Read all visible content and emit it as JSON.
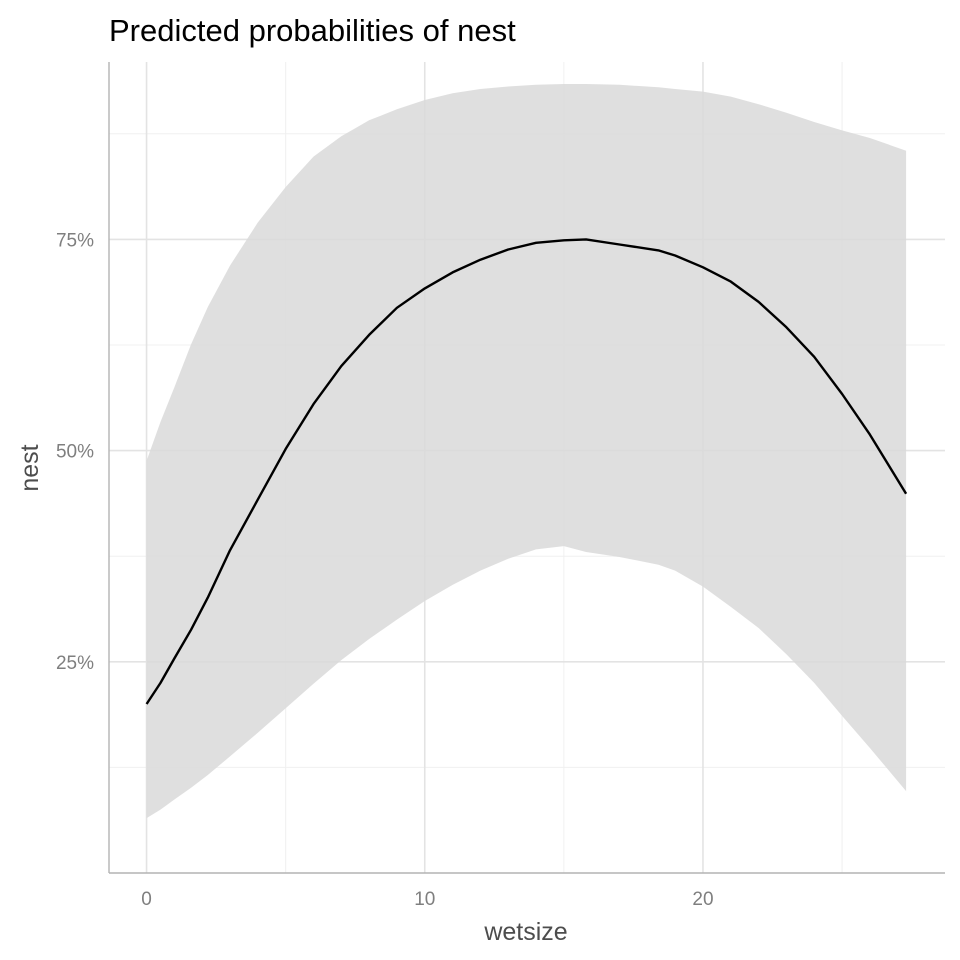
{
  "chart_data": {
    "type": "line",
    "title": "Predicted probabilities of nest",
    "xlabel": "wetsize",
    "ylabel": "nest",
    "xlim": [
      -1.35,
      28.7
    ],
    "ylim": [
      0.0,
      0.96
    ],
    "x_ticks": [
      0,
      10,
      20
    ],
    "x_tick_labels": [
      "0",
      "10",
      "20"
    ],
    "y_ticks": [
      0.25,
      0.5,
      0.75
    ],
    "y_tick_labels": [
      "25%",
      "50%",
      "75%"
    ],
    "x_minor_ticks": [
      5,
      15,
      25
    ],
    "y_minor_ticks": [
      0.125,
      0.375,
      0.625,
      0.875
    ],
    "grid": true,
    "legend": "none",
    "colors": {
      "line": "#000000",
      "ribbon": "#d9d9d9",
      "grid_major": "#e3e3e3",
      "grid_minor": "#f0f0f0",
      "axis": "#b3b3b3"
    },
    "series": [
      {
        "x": [
          0,
          0.5,
          1,
          1.6,
          2.2,
          3,
          4,
          5,
          6,
          7,
          8,
          9,
          10,
          11,
          12,
          13,
          14,
          15,
          15.8,
          17,
          18.4,
          19,
          20,
          21,
          22,
          23,
          24,
          25,
          26,
          27.3
        ],
        "y": [
          0.2,
          0.225,
          0.254,
          0.288,
          0.326,
          0.382,
          0.442,
          0.502,
          0.555,
          0.6,
          0.637,
          0.669,
          0.692,
          0.711,
          0.726,
          0.738,
          0.746,
          0.749,
          0.75,
          0.744,
          0.737,
          0.731,
          0.717,
          0.7,
          0.676,
          0.646,
          0.611,
          0.567,
          0.519,
          0.449
        ],
        "lower": [
          0.065,
          0.075,
          0.087,
          0.101,
          0.116,
          0.138,
          0.166,
          0.195,
          0.224,
          0.252,
          0.277,
          0.3,
          0.322,
          0.341,
          0.358,
          0.372,
          0.383,
          0.387,
          0.38,
          0.374,
          0.365,
          0.358,
          0.339,
          0.315,
          0.29,
          0.259,
          0.225,
          0.186,
          0.148,
          0.097
        ],
        "upper": [
          0.488,
          0.534,
          0.575,
          0.626,
          0.67,
          0.719,
          0.77,
          0.812,
          0.848,
          0.872,
          0.891,
          0.904,
          0.915,
          0.923,
          0.928,
          0.931,
          0.933,
          0.934,
          0.934,
          0.933,
          0.93,
          0.928,
          0.925,
          0.919,
          0.91,
          0.9,
          0.889,
          0.879,
          0.87,
          0.855
        ]
      }
    ]
  }
}
